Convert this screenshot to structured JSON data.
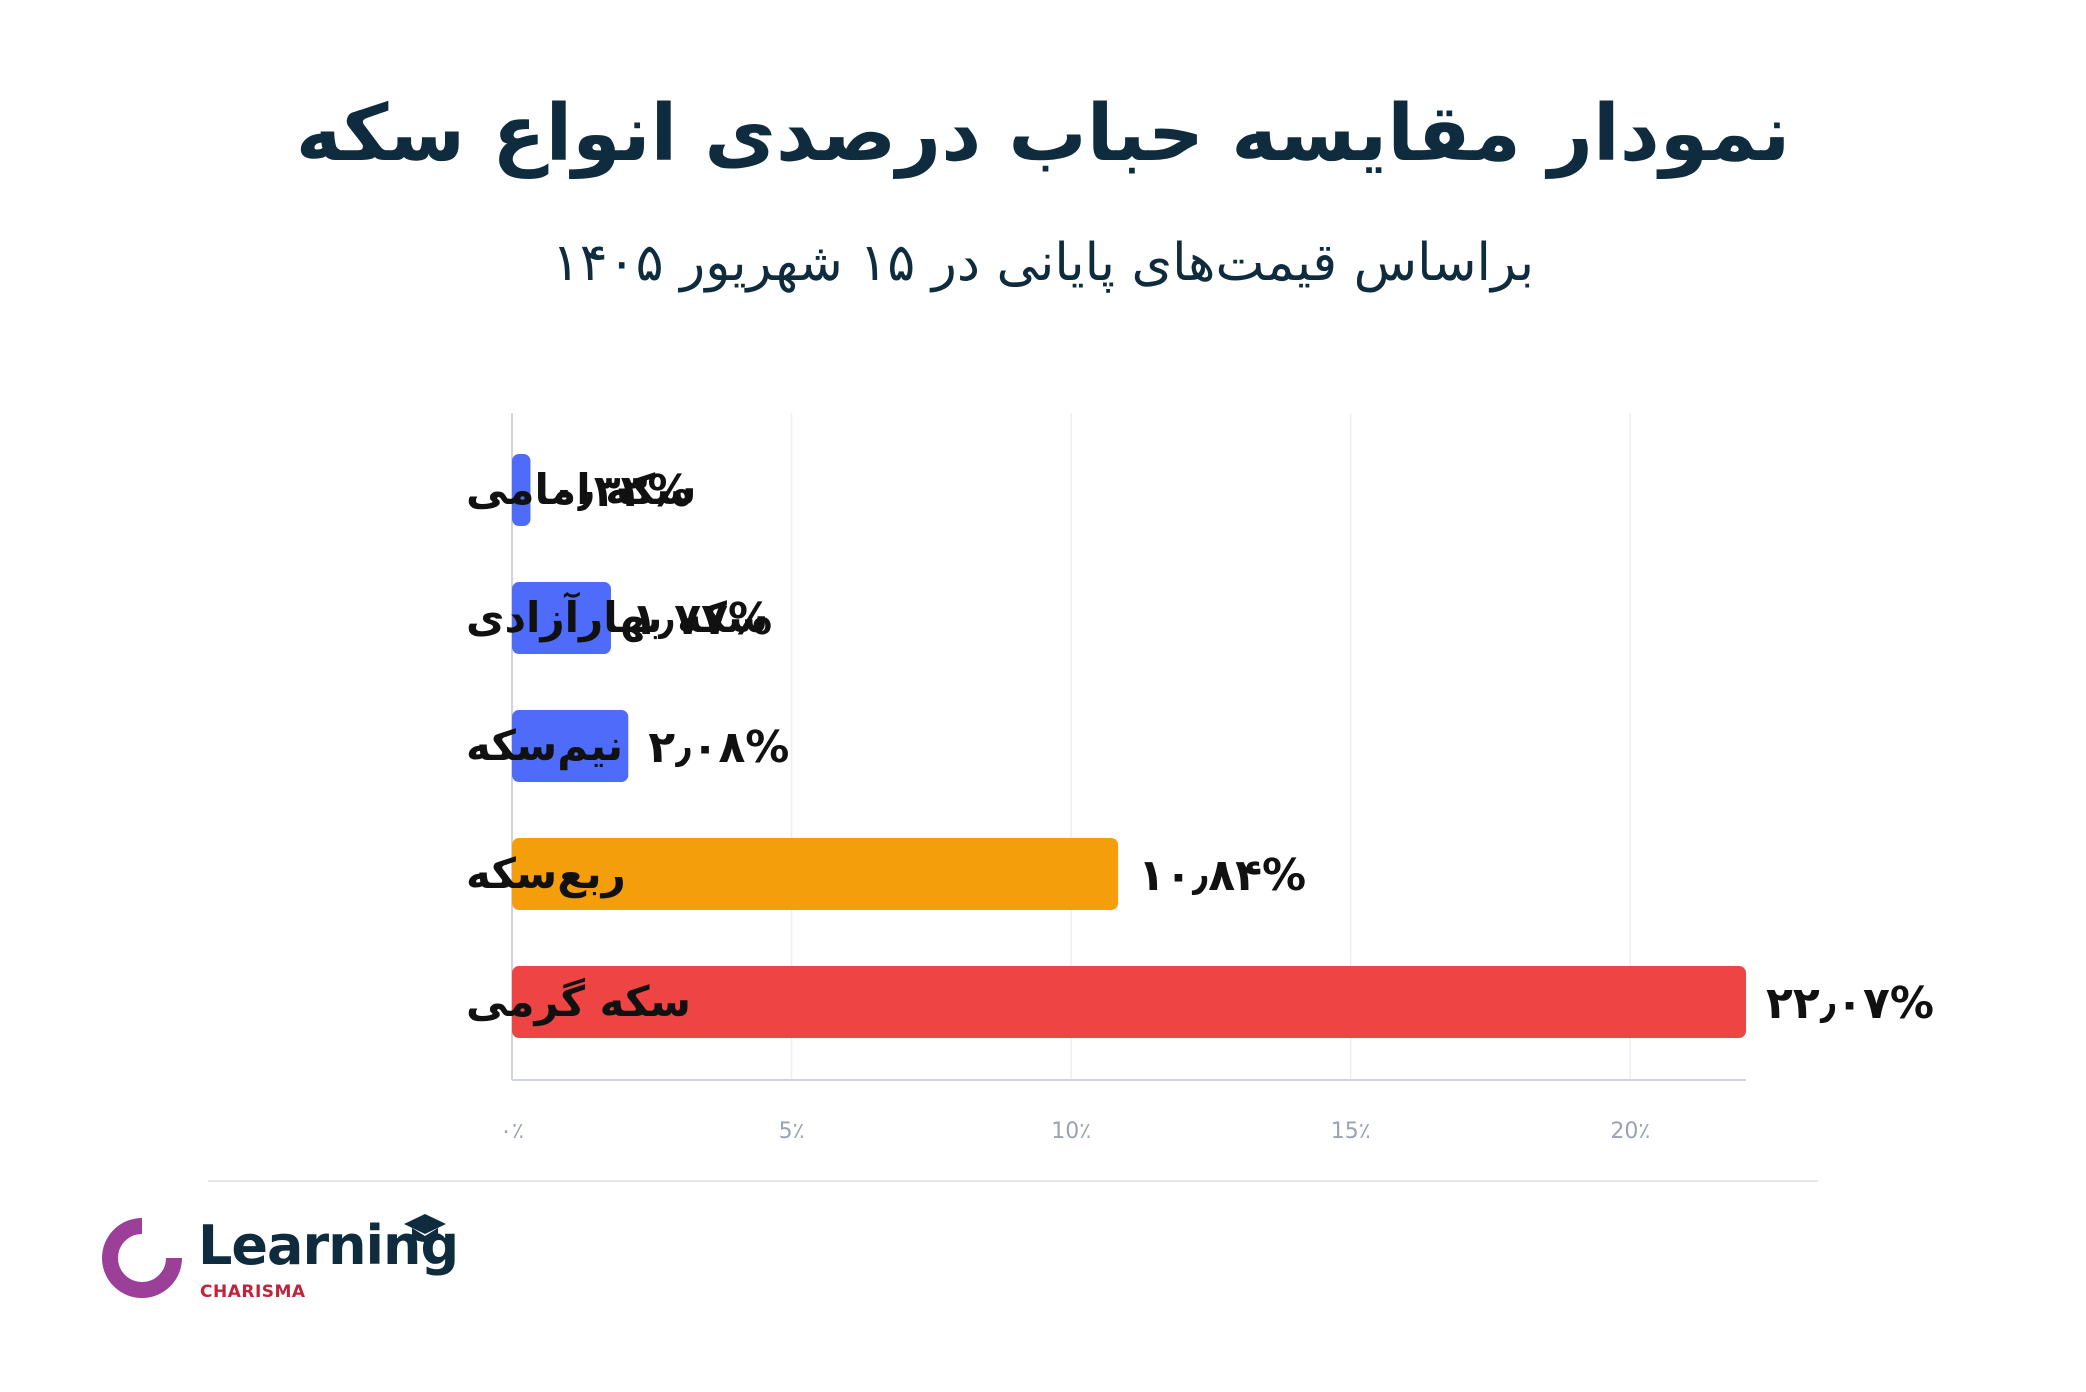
{
  "header": {
    "title": "نمودار مقایسه حباب درصدی انواع سکه",
    "subtitle": "براساس قیمت‌های پایانی در ۱۵ شهریور ۱۴۰۵"
  },
  "chart_data": {
    "type": "bar",
    "orientation": "horizontal",
    "categories": [
      "سکه امامی",
      "سکه بهارآزادی",
      "نیم‌سکه",
      "ربع‌سکه",
      "سکه گرمی"
    ],
    "values": [
      0.33,
      1.77,
      2.08,
      10.84,
      22.07
    ],
    "value_labels": [
      "۰٫۳۳%",
      "۱٫۷۷%",
      "۲٫۰۸%",
      "۱۰٫۸۴%",
      "۲۲٫۰۷%"
    ],
    "bar_colors": [
      "#4f6bfa",
      "#4f6bfa",
      "#4f6bfa",
      "#f59e0b",
      "#ef4444"
    ],
    "xlim": [
      0,
      22.07
    ],
    "x_ticks": [
      0,
      5,
      10,
      15,
      20
    ],
    "x_tick_labels": [
      "۰٪",
      "5٪",
      "10٪",
      "15٪",
      "20٪"
    ],
    "grid": "vertical",
    "legend": "none"
  },
  "logo": {
    "word": "Learning",
    "sub": "CHARISMA",
    "colors": {
      "ring": "#9b3f98",
      "word": "#0f2c3f",
      "sub": "#c0233a"
    }
  }
}
